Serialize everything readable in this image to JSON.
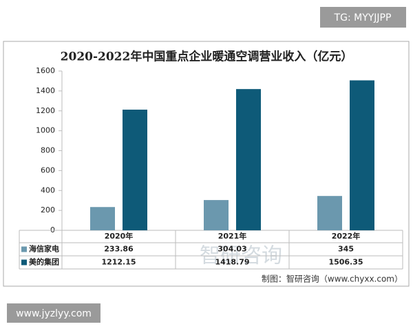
{
  "watermarks": [
    "TG: MYYJJPP",
    "www.jyzlyy.com"
  ],
  "chart_data": {
    "type": "bar",
    "title": "2020-2022年中国重点企业暖通空调营业收入（亿元）",
    "categories": [
      "2020年",
      "2021年",
      "2022年"
    ],
    "series": [
      {
        "name": "海信家电",
        "color": "#6b98ae",
        "values": [
          233.86,
          304.03,
          345
        ]
      },
      {
        "name": "美的集团",
        "color": "#0e5a78",
        "values": [
          1212.15,
          1418.79,
          1506.35
        ]
      }
    ],
    "ylim": [
      0,
      1600
    ],
    "yticks": [
      0,
      200,
      400,
      600,
      800,
      1000,
      1200,
      1400,
      1600
    ],
    "grid": false,
    "logo": "智研咨询",
    "source": "制图：智研咨询（www.chyxx.com）"
  }
}
